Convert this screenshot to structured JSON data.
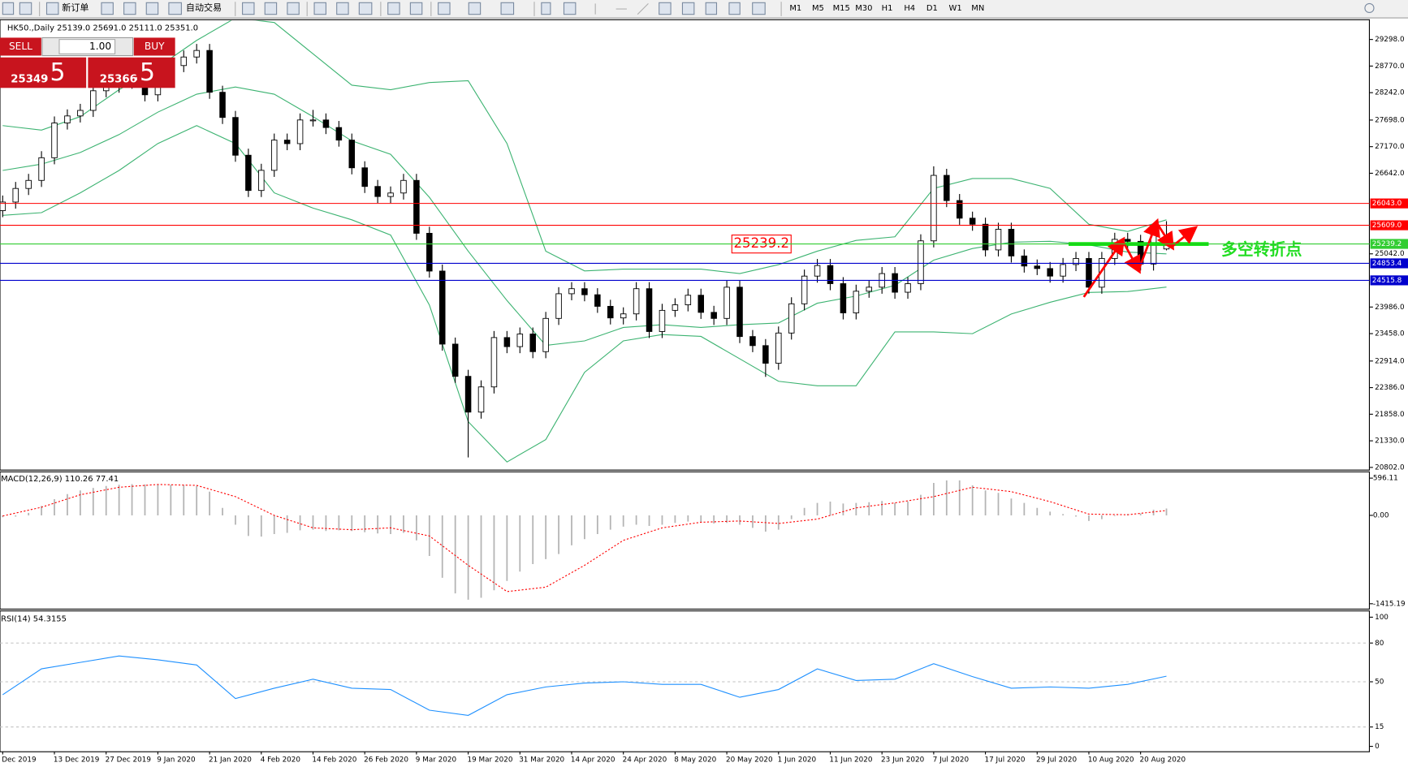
{
  "toolbar": {
    "new_order": "新订单",
    "auto_trading": "自动交易",
    "timeframes": [
      "M1",
      "M5",
      "M15",
      "M30",
      "H1",
      "H4",
      "D1",
      "W1",
      "MN"
    ]
  },
  "trade_panel": {
    "sell": "SELL",
    "lots": "1.00",
    "buy": "BUY",
    "sell_price": "25349",
    "sell_price_tail": ".5",
    "buy_price": "25366",
    "buy_price_tail": ".5"
  },
  "chart_data": {
    "type": "candlestick",
    "title": "HK50.,Daily  25139.0 25691.0 25111.0 25351.0",
    "categories": [
      "Dec 2019",
      null,
      null,
      null,
      "13 Dec 2019",
      null,
      null,
      null,
      "27 Dec 2019",
      null,
      null,
      null,
      "9 Jan 2020",
      null,
      null,
      null,
      "21 Jan 2020",
      null,
      null,
      null,
      "4 Feb 2020",
      null,
      null,
      null,
      "14 Feb 2020",
      null,
      null,
      null,
      "26 Feb 2020",
      null,
      null,
      null,
      "9 Mar 2020",
      null,
      null,
      null,
      "19 Mar 2020",
      null,
      null,
      null,
      "31 Mar 2020",
      null,
      null,
      null,
      "14 Apr 2020",
      null,
      null,
      null,
      "24 Apr 2020",
      null,
      null,
      null,
      "8 May 2020",
      null,
      null,
      null,
      "20 May 2020",
      null,
      null,
      null,
      "1 Jun 2020",
      null,
      null,
      null,
      "11 Jun 2020",
      null,
      null,
      null,
      "23 Jun 2020",
      null,
      null,
      null,
      "7 Jul 2020",
      null,
      null,
      null,
      "17 Jul 2020",
      null,
      null,
      null,
      "29 Jul 2020",
      null,
      null,
      null,
      "10 Aug 2020",
      null,
      null,
      null,
      "20 Aug 2020",
      null,
      null
    ],
    "candles": [
      [
        25900,
        26200,
        25770,
        26070
      ],
      [
        26070,
        26470,
        25940,
        26340
      ],
      [
        26340,
        26630,
        26210,
        26500
      ],
      [
        26500,
        27080,
        26370,
        26950
      ],
      [
        26950,
        27770,
        26820,
        27640
      ],
      [
        27640,
        27910,
        27510,
        27780
      ],
      [
        27780,
        28020,
        27650,
        27890
      ],
      [
        27890,
        28410,
        27760,
        28280
      ],
      [
        28280,
        28500,
        28150,
        28370
      ],
      [
        28370,
        28580,
        28240,
        28450
      ],
      [
        28450,
        28680,
        28320,
        28550
      ],
      [
        28550,
        28680,
        28070,
        28200
      ],
      [
        28200,
        28730,
        28070,
        28600
      ],
      [
        28600,
        28910,
        28470,
        28780
      ],
      [
        28780,
        29080,
        28650,
        28950
      ],
      [
        28950,
        29210,
        28820,
        29080
      ],
      [
        29080,
        29210,
        28120,
        28250
      ],
      [
        28250,
        28380,
        27620,
        27750
      ],
      [
        27750,
        27880,
        26870,
        27000
      ],
      [
        27000,
        27130,
        26170,
        26300
      ],
      [
        26300,
        26830,
        26170,
        26700
      ],
      [
        26700,
        27430,
        26570,
        27300
      ],
      [
        27300,
        27430,
        27100,
        27230
      ],
      [
        27230,
        27830,
        27100,
        27700
      ],
      [
        27700,
        27900,
        27570,
        27700
      ],
      [
        27700,
        27830,
        27420,
        27550
      ],
      [
        27550,
        27680,
        27170,
        27300
      ],
      [
        27300,
        27430,
        26620,
        26750
      ],
      [
        26750,
        26880,
        26250,
        26380
      ],
      [
        26380,
        26510,
        26050,
        26180
      ],
      [
        26180,
        26380,
        26050,
        26250
      ],
      [
        26250,
        26630,
        26120,
        26500
      ],
      [
        26500,
        26630,
        25320,
        25450
      ],
      [
        25450,
        25580,
        24570,
        24700
      ],
      [
        24700,
        24830,
        23120,
        23250
      ],
      [
        23250,
        23380,
        22480,
        22610
      ],
      [
        22610,
        22740,
        21000,
        21900
      ],
      [
        21900,
        22530,
        21770,
        22400
      ],
      [
        22400,
        23510,
        22270,
        23380
      ],
      [
        23380,
        23510,
        23070,
        23200
      ],
      [
        23200,
        23580,
        23070,
        23450
      ],
      [
        23450,
        23580,
        22970,
        23100
      ],
      [
        23100,
        23890,
        22970,
        23760
      ],
      [
        23760,
        24380,
        23630,
        24250
      ],
      [
        24250,
        24480,
        24120,
        24350
      ],
      [
        24350,
        24480,
        24100,
        24230
      ],
      [
        24230,
        24360,
        23870,
        24000
      ],
      [
        24000,
        24130,
        23640,
        23770
      ],
      [
        23770,
        23980,
        23640,
        23850
      ],
      [
        23850,
        24480,
        23720,
        24350
      ],
      [
        24350,
        24480,
        23370,
        23500
      ],
      [
        23500,
        24050,
        23370,
        23920
      ],
      [
        23920,
        24160,
        23790,
        24030
      ],
      [
        24030,
        24350,
        23900,
        24220
      ],
      [
        24220,
        24350,
        23750,
        23880
      ],
      [
        23880,
        24010,
        23630,
        23760
      ],
      [
        23760,
        24510,
        23630,
        24380
      ],
      [
        24380,
        24510,
        23270,
        23400
      ],
      [
        23400,
        23530,
        23090,
        23220
      ],
      [
        23220,
        23350,
        22600,
        22870
      ],
      [
        22870,
        23600,
        22740,
        23470
      ],
      [
        23470,
        24180,
        23340,
        24050
      ],
      [
        24050,
        24730,
        23920,
        24600
      ],
      [
        24600,
        24940,
        24470,
        24810
      ],
      [
        24810,
        24940,
        24320,
        24450
      ],
      [
        24450,
        24580,
        23740,
        23870
      ],
      [
        23870,
        24430,
        23740,
        24300
      ],
      [
        24300,
        24510,
        24170,
        24380
      ],
      [
        24380,
        24780,
        24250,
        24650
      ],
      [
        24650,
        24780,
        24150,
        24280
      ],
      [
        24280,
        24580,
        24150,
        24450
      ],
      [
        24450,
        25430,
        24320,
        25300
      ],
      [
        25300,
        26780,
        25170,
        26600
      ],
      [
        26600,
        26730,
        25970,
        26100
      ],
      [
        26100,
        26230,
        25620,
        25750
      ],
      [
        25750,
        25880,
        25500,
        25630
      ],
      [
        25630,
        25760,
        24990,
        25120
      ],
      [
        25120,
        25660,
        24990,
        25530
      ],
      [
        25530,
        25660,
        24870,
        25000
      ],
      [
        25000,
        25130,
        24670,
        24800
      ],
      [
        24800,
        24930,
        24620,
        24750
      ],
      [
        24750,
        24880,
        24470,
        24600
      ],
      [
        24600,
        24960,
        24470,
        24830
      ],
      [
        24830,
        25080,
        24700,
        24950
      ],
      [
        24950,
        25080,
        24250,
        24380
      ],
      [
        24380,
        25080,
        24250,
        24950
      ],
      [
        24950,
        25460,
        24820,
        25330
      ],
      [
        25330,
        25460,
        25160,
        25290
      ],
      [
        25290,
        25420,
        24710,
        24840
      ],
      [
        24840,
        25630,
        24710,
        25500
      ],
      [
        25139,
        25691,
        25111,
        25351
      ]
    ],
    "bull_color": "#ffffff",
    "bear_color": "#000000",
    "ylim": [
      20767,
      29583
    ],
    "yticks": [
      {
        "value": 29298,
        "label": "29298.0"
      },
      {
        "value": 28770,
        "label": "28770.0"
      },
      {
        "value": 28242,
        "label": "28242.0"
      },
      {
        "value": 27698,
        "label": "27698.0"
      },
      {
        "value": 27170,
        "label": "27170.0"
      },
      {
        "value": 26642,
        "label": "26642.0"
      },
      {
        "value": 25042,
        "label": "25042.0"
      },
      {
        "value": 23986,
        "label": "23986.0"
      },
      {
        "value": 23458,
        "label": "23458.0"
      },
      {
        "value": 22914,
        "label": "22914.0"
      },
      {
        "value": 22386,
        "label": "22386.0"
      },
      {
        "value": 21858,
        "label": "21858.0"
      },
      {
        "value": 21330,
        "label": "21330.0"
      },
      {
        "value": 20802,
        "label": "20802.0"
      }
    ],
    "hlines": [
      {
        "value": 26043,
        "label": "26043.0",
        "color": "#ff0000"
      },
      {
        "value": 25609,
        "label": "25609.0",
        "color": "#ff0000"
      },
      {
        "value": 25239.2,
        "label": "25239.2",
        "color": "#32cd32"
      },
      {
        "value": 24853.4,
        "label": "24853.4",
        "color": "#0000cd"
      },
      {
        "value": 24515.8,
        "label": "24515.8",
        "color": "#0000cd"
      }
    ],
    "bollinger": {
      "color": "#3cb371",
      "x": [
        0,
        3,
        6,
        9,
        12,
        15,
        18,
        21,
        24,
        27,
        30,
        33,
        36,
        39,
        42,
        45,
        48,
        51,
        54,
        57,
        60,
        63,
        66,
        69,
        72,
        75,
        78,
        81,
        84,
        87,
        90
      ],
      "upper": [
        27588,
        27499,
        27766,
        28301,
        28746,
        29280,
        29725,
        29636,
        29013,
        28390,
        28301,
        28443,
        28479,
        27232,
        25095,
        24703,
        24739,
        24739,
        24739,
        24650,
        24828,
        25095,
        25309,
        25380,
        26342,
        26538,
        26538,
        26342,
        25629,
        25487,
        25718
      ],
      "middle": [
        26698,
        26823,
        27054,
        27410,
        27855,
        28212,
        28354,
        28212,
        27766,
        27285,
        27018,
        26164,
        25095,
        24115,
        23225,
        23314,
        23581,
        23635,
        23581,
        23635,
        23670,
        24062,
        24204,
        24418,
        24917,
        25148,
        25273,
        25291,
        25220,
        25077,
        25041
      ],
      "lower": [
        25807,
        25860,
        26253,
        26698,
        27232,
        27588,
        27232,
        26253,
        25950,
        25718,
        25415,
        24026,
        21711,
        20910,
        21355,
        22690,
        23314,
        23439,
        23403,
        22958,
        22512,
        22423,
        22423,
        23492,
        23492,
        23457,
        23848,
        24080,
        24276,
        24293,
        24383
      ]
    },
    "annotation": "多空转折点",
    "macd": {
      "title": "MACD(12,26,9) 110.26 77.41",
      "ylim": [
        -1415.19,
        596.11
      ],
      "yticks": [
        596.11,
        {
          "value": 0,
          "label": "0.00"
        },
        -1415.19
      ],
      "histogram_color": "#b4b4b4",
      "signal_color": "#ff0000",
      "histogram": [
        -30,
        -20,
        40,
        150,
        260,
        340,
        400,
        440,
        470,
        490,
        500,
        495,
        495,
        490,
        485,
        470,
        380,
        120,
        -150,
        -330,
        -340,
        -300,
        -280,
        -240,
        -230,
        -250,
        -240,
        -250,
        -270,
        -290,
        -300,
        -280,
        -400,
        -650,
        -1000,
        -1250,
        -1350,
        -1320,
        -1200,
        -1050,
        -900,
        -780,
        -700,
        -620,
        -480,
        -380,
        -300,
        -230,
        -180,
        -150,
        -170,
        -150,
        -120,
        -100,
        -110,
        -130,
        -120,
        -150,
        -200,
        -260,
        -230,
        -60,
        120,
        200,
        220,
        190,
        200,
        210,
        230,
        200,
        220,
        330,
        520,
        560,
        560,
        480,
        400,
        360,
        270,
        200,
        120,
        60,
        20,
        -20,
        -90,
        -60,
        -10,
        20,
        30,
        90,
        110.26
      ],
      "signal_x": [
        0,
        3,
        6,
        9,
        12,
        15,
        18,
        21,
        24,
        27,
        30,
        33,
        36,
        39,
        42,
        45,
        48,
        51,
        54,
        57,
        60,
        63,
        66,
        69,
        72,
        75,
        78,
        81,
        84,
        87,
        90
      ],
      "signal": [
        -10,
        130,
        330,
        450,
        495,
        480,
        300,
        0,
        -200,
        -230,
        -200,
        -330,
        -800,
        -1220,
        -1150,
        -800,
        -400,
        -200,
        -110,
        -90,
        -130,
        -60,
        120,
        200,
        300,
        450,
        380,
        220,
        20,
        10,
        77.41
      ]
    },
    "rsi": {
      "title": "RSI(14) 54.3155",
      "ylim": [
        0,
        100
      ],
      "yticks": [
        100,
        80,
        50,
        15,
        0
      ],
      "color": "#1e90ff",
      "x": [
        0,
        3,
        6,
        9,
        12,
        15,
        18,
        21,
        24,
        27,
        30,
        33,
        36,
        39,
        42,
        45,
        48,
        51,
        54,
        57,
        60,
        63,
        66,
        69,
        72,
        75,
        78,
        81,
        84,
        87,
        90
      ],
      "values": [
        40,
        60,
        65,
        70,
        67,
        63,
        37,
        45,
        52,
        45,
        44,
        28,
        24,
        40,
        46,
        49,
        50,
        48,
        48,
        38,
        44,
        60,
        51,
        52,
        64,
        54,
        45,
        46,
        45,
        48,
        54.3155
      ]
    }
  }
}
